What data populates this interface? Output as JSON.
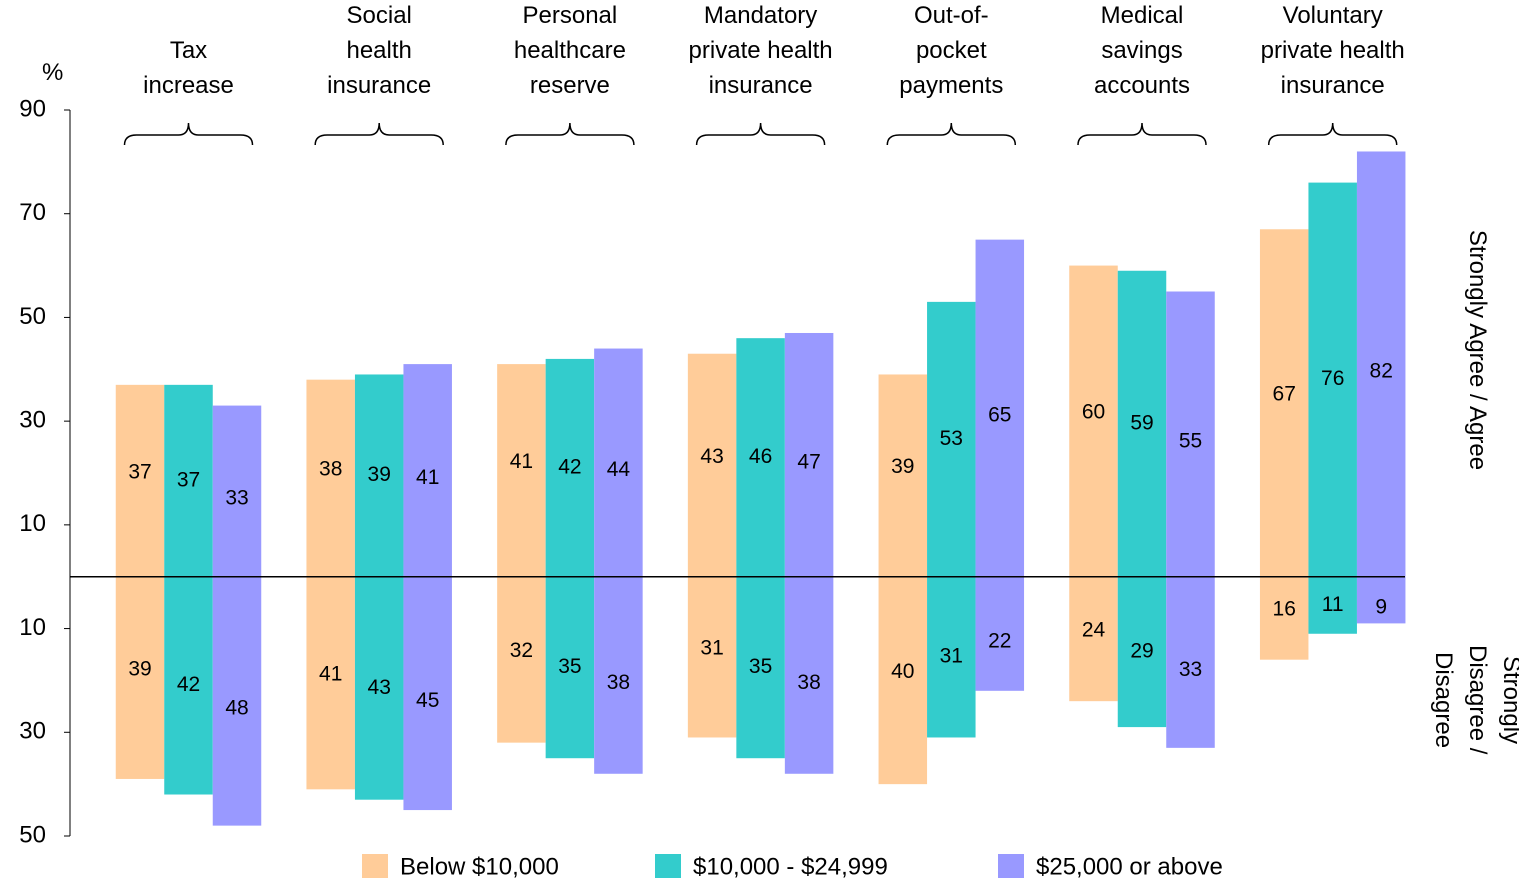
{
  "chart_data": {
    "type": "diverging_bar",
    "y_label": "%",
    "y_label_right_top": "Strongly Agree / Agree",
    "y_label_right_bottom": "Strongly Disagree /\nDisagree",
    "categories": [
      "Tax\nincrease",
      "Social\nhealth\ninsurance",
      "Personal\nhealthcare\nreserve",
      "Mandatory\nprivate health\ninsurance",
      "Out-of-\npocket\npayments",
      "Medical\nsavings\naccounts",
      "Voluntary\nprivate health\ninsurance"
    ],
    "ylim": [
      -50,
      90
    ],
    "yticks": [
      90,
      70,
      50,
      30,
      10,
      {
        "value": -10,
        "label": "10"
      },
      {
        "value": -30,
        "label": "30"
      },
      {
        "value": -50,
        "label": "50"
      }
    ],
    "series": [
      {
        "name": "Below $10,000",
        "color": "#ffcc99",
        "values": [
          37,
          38,
          41,
          43,
          39,
          60,
          67
        ],
        "disagree_values": [
          -39,
          -41,
          -32,
          -31,
          -40,
          -24,
          -16
        ],
        "disagree_value_labels": [
          "39",
          "41",
          "32",
          "31",
          "40",
          "24",
          "16"
        ]
      },
      {
        "name": "$10,000 - $24,999",
        "color": "#33cccc",
        "values": [
          37,
          39,
          42,
          46,
          53,
          59,
          76
        ],
        "disagree_values": [
          -42,
          -43,
          -35,
          -35,
          -31,
          -29,
          -11
        ],
        "disagree_value_labels": [
          "42",
          "43",
          "35",
          "35",
          "31",
          "29",
          "11"
        ]
      },
      {
        "name": "$25,000 or above",
        "color": "#9999ff",
        "values": [
          33,
          41,
          44,
          47,
          65,
          55,
          82
        ],
        "disagree_values": [
          -48,
          -45,
          -38,
          -38,
          -22,
          -33,
          -9
        ],
        "disagree_value_labels": [
          "48",
          "45",
          "38",
          "38",
          "22",
          "33",
          "9"
        ]
      }
    ],
    "legend": "bottom"
  }
}
